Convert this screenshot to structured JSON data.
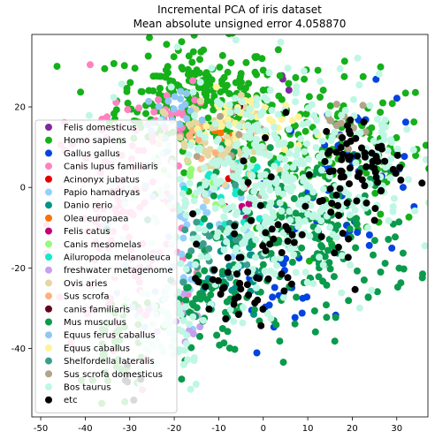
{
  "chart_data": {
    "type": "scatter",
    "title": "Incremental PCA of iris dataset",
    "subtitle": "Mean absolute unsigned error 4.058870",
    "xlabel": "",
    "ylabel": "",
    "xlim": [
      -52,
      37
    ],
    "ylim": [
      -57,
      38
    ],
    "xticks": [
      -50,
      -40,
      -30,
      -20,
      -10,
      0,
      10,
      20,
      30
    ],
    "yticks": [
      -40,
      -20,
      0,
      20
    ],
    "grid": false,
    "legend_position": "left",
    "series": [
      {
        "name": "Felis domesticus",
        "color": "#7f2a9e",
        "clusters": [
          {
            "cx": 5,
            "cy": 25,
            "sx": 2,
            "sy": 2,
            "n": 3
          }
        ]
      },
      {
        "name": "Homo sapiens",
        "color": "#15b01a",
        "clusters": [
          {
            "cx": -15,
            "cy": 22,
            "sx": 9,
            "sy": 7,
            "n": 260
          },
          {
            "cx": 15,
            "cy": 8,
            "sx": 12,
            "sy": 10,
            "n": 160
          },
          {
            "cx": -32,
            "cy": -40,
            "sx": 4,
            "sy": 8,
            "n": 40
          }
        ]
      },
      {
        "name": "Gallus gallus",
        "color": "#0343df",
        "clusters": [
          {
            "cx": 20,
            "cy": 3,
            "sx": 9,
            "sy": 10,
            "n": 45
          },
          {
            "cx": 2,
            "cy": -25,
            "sx": 6,
            "sy": 4,
            "n": 25
          }
        ]
      },
      {
        "name": "Canis lupus familiaris",
        "color": "#ff81c0",
        "clusters": [
          {
            "cx": -32,
            "cy": -10,
            "sx": 8,
            "sy": 18,
            "n": 120
          },
          {
            "cx": -20,
            "cy": 18,
            "sx": 4,
            "sy": 4,
            "n": 20
          }
        ]
      },
      {
        "name": "Acinonyx jubatus",
        "color": "#e50000",
        "clusters": [
          {
            "cx": -5,
            "cy": 0,
            "sx": 3,
            "sy": 3,
            "n": 6
          }
        ]
      },
      {
        "name": "Papio hamadryas",
        "color": "#95d0fc",
        "clusters": [
          {
            "cx": -18,
            "cy": -12,
            "sx": 6,
            "sy": 12,
            "n": 50
          }
        ]
      },
      {
        "name": "Danio rerio",
        "color": "#029386",
        "clusters": [
          {
            "cx": -8,
            "cy": -20,
            "sx": 5,
            "sy": 6,
            "n": 40
          }
        ]
      },
      {
        "name": "Olea europaea",
        "color": "#f97306",
        "clusters": [
          {
            "cx": -10,
            "cy": 12,
            "sx": 2,
            "sy": 2,
            "n": 4
          }
        ]
      },
      {
        "name": "Felis catus",
        "color": "#c20078",
        "clusters": [
          {
            "cx": -6,
            "cy": -5,
            "sx": 3,
            "sy": 4,
            "n": 6
          }
        ]
      },
      {
        "name": "Canis mesomelas",
        "color": "#96f97b",
        "clusters": [
          {
            "cx": -15,
            "cy": 3,
            "sx": 4,
            "sy": 4,
            "n": 12
          }
        ]
      },
      {
        "name": "Ailuropoda melanoleuca",
        "color": "#13eac9",
        "clusters": [
          {
            "cx": -8,
            "cy": 0,
            "sx": 5,
            "sy": 6,
            "n": 20
          }
        ]
      },
      {
        "name": "freshwater metagenome",
        "color": "#c79fef",
        "clusters": [
          {
            "cx": -20,
            "cy": -32,
            "sx": 3,
            "sy": 4,
            "n": 15
          }
        ]
      },
      {
        "name": "Ovis aries",
        "color": "#e6d7a2",
        "clusters": [
          {
            "cx": -10,
            "cy": 10,
            "sx": 6,
            "sy": 6,
            "n": 70
          }
        ]
      },
      {
        "name": "Sus scrofa",
        "color": "#ffb07c",
        "clusters": [
          {
            "cx": -14,
            "cy": 12,
            "sx": 3,
            "sy": 3,
            "n": 8
          }
        ]
      },
      {
        "name": "canis familiaris",
        "color": "#650021",
        "clusters": [
          {
            "cx": -5,
            "cy": 20,
            "sx": 2,
            "sy": 2,
            "n": 3
          }
        ]
      },
      {
        "name": "Mus musculus",
        "color": "#0a9a4c",
        "clusters": [
          {
            "cx": 10,
            "cy": -12,
            "sx": 12,
            "sy": 10,
            "n": 200
          },
          {
            "cx": -12,
            "cy": -30,
            "sx": 5,
            "sy": 6,
            "n": 50
          }
        ]
      },
      {
        "name": "Equus ferus caballus",
        "color": "#8fc7f3",
        "clusters": [
          {
            "cx": -22,
            "cy": 18,
            "sx": 3,
            "sy": 4,
            "n": 25
          }
        ]
      },
      {
        "name": "Equus caballus",
        "color": "#fff39a",
        "clusters": [
          {
            "cx": -4,
            "cy": 16,
            "sx": 6,
            "sy": 4,
            "n": 40
          }
        ]
      },
      {
        "name": "Shelfordella lateralis",
        "color": "#3a9e8c",
        "clusters": [
          {
            "cx": -12,
            "cy": -15,
            "sx": 5,
            "sy": 6,
            "n": 25
          }
        ]
      },
      {
        "name": "Sus scrofa domesticus",
        "color": "#b2a489",
        "clusters": [
          {
            "cx": 18,
            "cy": 17,
            "sx": 3,
            "sy": 3,
            "n": 12
          },
          {
            "cx": -5,
            "cy": 8,
            "sx": 4,
            "sy": 4,
            "n": 15
          }
        ]
      },
      {
        "name": "Bos taurus",
        "color": "#bff7e4",
        "clusters": [
          {
            "cx": 0,
            "cy": 0,
            "sx": 13,
            "sy": 14,
            "n": 420
          },
          {
            "cx": -22,
            "cy": -35,
            "sx": 5,
            "sy": 8,
            "n": 60
          },
          {
            "cx": 28,
            "cy": 8,
            "sx": 4,
            "sy": 5,
            "n": 35
          }
        ]
      },
      {
        "name": "etc",
        "color": "#000000",
        "clusters": [
          {
            "cx": 22,
            "cy": 6,
            "sx": 5,
            "sy": 6,
            "n": 70
          },
          {
            "cx": 5,
            "cy": -10,
            "sx": 9,
            "sy": 9,
            "n": 45
          },
          {
            "cx": -8,
            "cy": -25,
            "sx": 5,
            "sy": 5,
            "n": 30
          },
          {
            "cx": -30,
            "cy": -48,
            "sx": 3,
            "sy": 3,
            "n": 6
          }
        ]
      }
    ]
  }
}
